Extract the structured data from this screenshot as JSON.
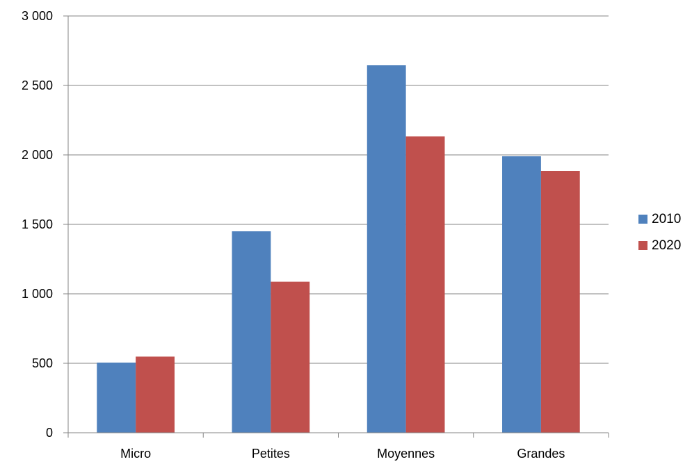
{
  "chart_data": {
    "type": "bar",
    "title": "",
    "xlabel": "",
    "ylabel": "",
    "categories": [
      "Micro",
      "Petites",
      "Moyennes",
      "Grandes"
    ],
    "series": [
      {
        "name": "2010",
        "color": "#4F81BD",
        "values": [
          505,
          1450,
          2645,
          1990
        ]
      },
      {
        "name": "2020",
        "color": "#C0504D",
        "values": [
          548,
          1087,
          2133,
          1885
        ]
      }
    ],
    "ylim": [
      0,
      3000
    ],
    "y_ticks": [
      0,
      500,
      1000,
      1500,
      2000,
      2500,
      3000
    ],
    "y_tick_labels": [
      "0",
      "500",
      "1 000",
      "1 500",
      "2 000",
      "2 500",
      "3 000"
    ],
    "grid": true,
    "legend_position": "right"
  }
}
